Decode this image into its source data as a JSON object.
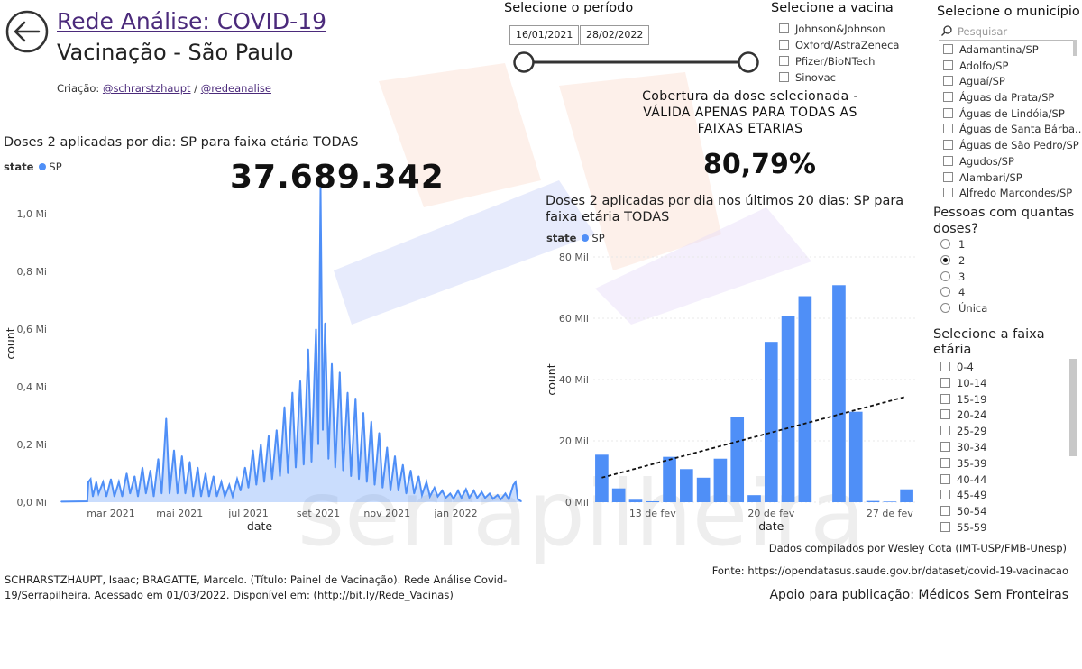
{
  "header": {
    "title": "Rede Análise: COVID-19",
    "subtitle": "Vacinação - São Paulo",
    "credits_prefix": "Criação:",
    "credits_user1": "@schrarstzhaupt",
    "credits_sep": "/",
    "credits_user2": "@redeanalise"
  },
  "left_chart": {
    "heading": "Doses 2 aplicadas por dia: SP para faixa etária TODAS",
    "legend_title": "state",
    "legend_item": "SP",
    "total": "37.689.342"
  },
  "period": {
    "title": "Selecione o período",
    "start": "16/01/2021",
    "end": "28/02/2022"
  },
  "vaccine": {
    "title": "Selecione a vacina",
    "options": [
      "Johnson&Johnson",
      "Oxford/AstraZeneca",
      "Pfizer/BioNTech",
      "Sinovac"
    ]
  },
  "coverage": {
    "heading": "Cobertura da dose selecionada - VÁLIDA APENAS PARA TODAS AS FAIXAS ETARIAS",
    "value": "80,79%"
  },
  "right_chart": {
    "heading_line1": "Doses 2 aplicadas por dia nos últimos 20 dias: SP para",
    "heading_line2": "faixa etária TODAS",
    "legend_title": "state",
    "legend_item": "SP"
  },
  "municipio": {
    "title": "Selecione o município",
    "search_placeholder": "Pesquisar",
    "items": [
      "Adamantina/SP",
      "Adolfo/SP",
      "Aguaí/SP",
      "Águas da Prata/SP",
      "Águas de Lindóia/SP",
      "Águas de Santa Bárba...",
      "Águas de São Pedro/SP",
      "Agudos/SP",
      "Alambari/SP",
      "Alfredo Marcondes/SP"
    ]
  },
  "doses": {
    "title_line1": "Pessoas com quantas",
    "title_line2": "doses?",
    "options": [
      "1",
      "2",
      "3",
      "4",
      "Única"
    ],
    "selected": "2"
  },
  "faixa": {
    "title_line1": "Selecione a faixa",
    "title_line2": "etária",
    "options": [
      "0-4",
      "10-14",
      "15-19",
      "20-24",
      "25-29",
      "30-34",
      "35-39",
      "40-44",
      "45-49",
      "50-54",
      "55-59"
    ]
  },
  "footer": {
    "compiled_by": "Dados compilados por Wesley Cota (IMT-USP/FMB-Unesp)",
    "source": "Fonte: https://opendatasus.saude.gov.br/dataset/covid-19-vacinacao",
    "citation_line1": "SCHRARSTZHAUPT, Isaac; BRAGATTE, Marcelo. (Título: Painel de Vacinação). Rede Análise Covid-",
    "citation_line2": "19/Serrapilheira. Acessado em 01/03/2022. Disponível em: (http://bit.ly/Rede_Vacinas)",
    "support": "Apoio para publicação: Médicos Sem Fronteiras"
  },
  "watermark": {
    "text": "serrapilheira"
  },
  "colors": {
    "series": "#4f8ff7",
    "title_link": "#4b2a7b",
    "trend": "#111111"
  },
  "chart_data": [
    {
      "type": "area",
      "title": "Doses 2 aplicadas por dia: SP para faixa etária TODAS",
      "xlabel": "date",
      "ylabel": "count",
      "ylim": [
        0,
        1100000
      ],
      "y_ticks": [
        0,
        200000,
        400000,
        600000,
        800000,
        1000000
      ],
      "y_tick_labels": [
        "0,0 Mi",
        "0,2 Mi",
        "0,4 Mi",
        "0,6 Mi",
        "0,8 Mi",
        "1,0 Mi"
      ],
      "x_ticks": [
        "2021-03-01",
        "2021-05-01",
        "2021-07-01",
        "2021-09-01",
        "2021-11-01",
        "2022-01-01"
      ],
      "x_tick_labels": [
        "mar 2021",
        "mai 2021",
        "jul 2021",
        "set 2021",
        "nov 2021",
        "jan 2022"
      ],
      "xlim": [
        "2021-01-16",
        "2022-02-28"
      ],
      "series": [
        {
          "name": "SP",
          "points": [
            [
              "2021-01-16",
              2000
            ],
            [
              "2021-02-08",
              3000
            ],
            [
              "2021-02-09",
              70000
            ],
            [
              "2021-02-11",
              80000
            ],
            [
              "2021-02-13",
              20000
            ],
            [
              "2021-02-16",
              70000
            ],
            [
              "2021-02-18",
              30000
            ],
            [
              "2021-02-22",
              70000
            ],
            [
              "2021-02-25",
              20000
            ],
            [
              "2021-03-01",
              80000
            ],
            [
              "2021-03-04",
              20000
            ],
            [
              "2021-03-08",
              70000
            ],
            [
              "2021-03-11",
              20000
            ],
            [
              "2021-03-15",
              100000
            ],
            [
              "2021-03-18",
              30000
            ],
            [
              "2021-03-22",
              90000
            ],
            [
              "2021-03-25",
              20000
            ],
            [
              "2021-03-29",
              120000
            ],
            [
              "2021-04-01",
              30000
            ],
            [
              "2021-04-05",
              110000
            ],
            [
              "2021-04-08",
              20000
            ],
            [
              "2021-04-12",
              150000
            ],
            [
              "2021-04-15",
              30000
            ],
            [
              "2021-04-19",
              290000
            ],
            [
              "2021-04-22",
              30000
            ],
            [
              "2021-04-26",
              180000
            ],
            [
              "2021-04-29",
              30000
            ],
            [
              "2021-05-03",
              160000
            ],
            [
              "2021-05-06",
              30000
            ],
            [
              "2021-05-10",
              140000
            ],
            [
              "2021-05-13",
              20000
            ],
            [
              "2021-05-17",
              120000
            ],
            [
              "2021-05-20",
              20000
            ],
            [
              "2021-05-24",
              100000
            ],
            [
              "2021-05-27",
              20000
            ],
            [
              "2021-05-31",
              90000
            ],
            [
              "2021-06-03",
              20000
            ],
            [
              "2021-06-07",
              70000
            ],
            [
              "2021-06-10",
              20000
            ],
            [
              "2021-06-14",
              60000
            ],
            [
              "2021-06-17",
              20000
            ],
            [
              "2021-06-21",
              80000
            ],
            [
              "2021-06-24",
              40000
            ],
            [
              "2021-06-28",
              120000
            ],
            [
              "2021-07-01",
              50000
            ],
            [
              "2021-07-05",
              180000
            ],
            [
              "2021-07-08",
              60000
            ],
            [
              "2021-07-12",
              200000
            ],
            [
              "2021-07-15",
              70000
            ],
            [
              "2021-07-19",
              230000
            ],
            [
              "2021-07-22",
              80000
            ],
            [
              "2021-07-26",
              250000
            ],
            [
              "2021-07-29",
              90000
            ],
            [
              "2021-08-02",
              330000
            ],
            [
              "2021-08-05",
              100000
            ],
            [
              "2021-08-09",
              380000
            ],
            [
              "2021-08-12",
              120000
            ],
            [
              "2021-08-16",
              420000
            ],
            [
              "2021-08-19",
              130000
            ],
            [
              "2021-08-23",
              530000
            ],
            [
              "2021-08-26",
              140000
            ],
            [
              "2021-08-30",
              600000
            ],
            [
              "2021-09-01",
              200000
            ],
            [
              "2021-09-03",
              1090000
            ],
            [
              "2021-09-05",
              250000
            ],
            [
              "2021-09-07",
              620000
            ],
            [
              "2021-09-10",
              150000
            ],
            [
              "2021-09-13",
              480000
            ],
            [
              "2021-09-16",
              120000
            ],
            [
              "2021-09-20",
              450000
            ],
            [
              "2021-09-23",
              110000
            ],
            [
              "2021-09-27",
              380000
            ],
            [
              "2021-09-30",
              90000
            ],
            [
              "2021-10-04",
              360000
            ],
            [
              "2021-10-07",
              80000
            ],
            [
              "2021-10-11",
              310000
            ],
            [
              "2021-10-14",
              70000
            ],
            [
              "2021-10-18",
              280000
            ],
            [
              "2021-10-21",
              60000
            ],
            [
              "2021-10-25",
              240000
            ],
            [
              "2021-10-28",
              50000
            ],
            [
              "2021-11-01",
              190000
            ],
            [
              "2021-11-04",
              40000
            ],
            [
              "2021-11-08",
              160000
            ],
            [
              "2021-11-11",
              40000
            ],
            [
              "2021-11-15",
              130000
            ],
            [
              "2021-11-18",
              30000
            ],
            [
              "2021-11-22",
              110000
            ],
            [
              "2021-11-25",
              30000
            ],
            [
              "2021-11-29",
              90000
            ],
            [
              "2021-12-02",
              25000
            ],
            [
              "2021-12-06",
              70000
            ],
            [
              "2021-12-09",
              20000
            ],
            [
              "2021-12-13",
              50000
            ],
            [
              "2021-12-16",
              20000
            ],
            [
              "2021-12-20",
              40000
            ],
            [
              "2021-12-23",
              15000
            ],
            [
              "2021-12-27",
              30000
            ],
            [
              "2021-12-30",
              12000
            ],
            [
              "2022-01-03",
              40000
            ],
            [
              "2022-01-06",
              15000
            ],
            [
              "2022-01-10",
              45000
            ],
            [
              "2022-01-13",
              15000
            ],
            [
              "2022-01-17",
              40000
            ],
            [
              "2022-01-20",
              15000
            ],
            [
              "2022-01-24",
              35000
            ],
            [
              "2022-01-27",
              15000
            ],
            [
              "2022-01-31",
              30000
            ],
            [
              "2022-02-03",
              12000
            ],
            [
              "2022-02-07",
              25000
            ],
            [
              "2022-02-10",
              10000
            ],
            [
              "2022-02-14",
              30000
            ],
            [
              "2022-02-17",
              10000
            ],
            [
              "2022-02-21",
              60000
            ],
            [
              "2022-02-23",
              70000
            ],
            [
              "2022-02-25",
              10000
            ],
            [
              "2022-02-28",
              3000
            ]
          ]
        }
      ]
    },
    {
      "type": "bar",
      "title": "Doses 2 aplicadas por dia nos últimos 20 dias: SP para faixa etária TODAS",
      "xlabel": "date",
      "ylabel": "count",
      "ylim": [
        0,
        80000
      ],
      "y_ticks": [
        0,
        20000,
        40000,
        60000,
        80000
      ],
      "y_tick_labels": [
        "0 Mil",
        "20 Mil",
        "40 Mil",
        "60 Mil",
        "80 Mil"
      ],
      "x_tick_labels": [
        {
          "index": 3,
          "label": "13 de fev"
        },
        {
          "index": 10,
          "label": "20 de fev"
        },
        {
          "index": 17,
          "label": "27 de fev"
        }
      ],
      "categories": [
        "2022-02-10",
        "2022-02-11",
        "2022-02-12",
        "2022-02-13",
        "2022-02-14",
        "2022-02-15",
        "2022-02-16",
        "2022-02-17",
        "2022-02-18",
        "2022-02-19",
        "2022-02-20",
        "2022-02-21",
        "2022-02-22",
        "2022-02-23",
        "2022-02-24",
        "2022-02-25",
        "2022-02-26",
        "2022-02-27",
        "2022-02-28"
      ],
      "series": [
        {
          "name": "SP",
          "values": [
            15500,
            4500,
            800,
            300,
            14800,
            10800,
            8000,
            14200,
            27800,
            2300,
            52300,
            60800,
            67200,
            0,
            70800,
            29500,
            400,
            200,
            4200
          ]
        }
      ],
      "trendline": {
        "style": "dashed",
        "start": 8000,
        "end": 34500
      }
    }
  ]
}
